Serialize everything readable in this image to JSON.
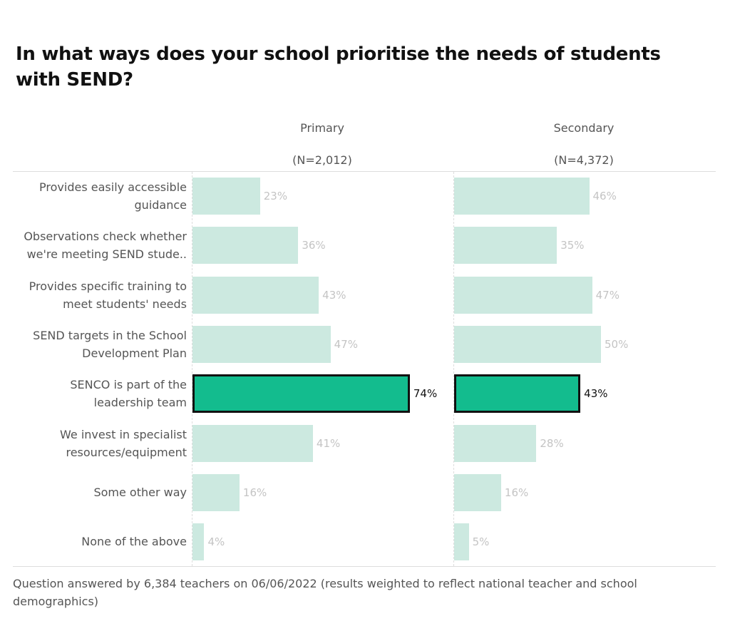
{
  "chart_data": {
    "type": "bar",
    "orientation": "horizontal",
    "title": "In what ways does your school prioritise the needs of students with SEND?",
    "categories": [
      "Provides easily accessible guidance",
      "Observations check whether we're meeting SEND stude..",
      "Provides specific training to meet students' needs",
      "SEND targets in the School Development Plan",
      "SENCO is part of the leadership team",
      "We invest in specialist resources/equipment",
      "Some other way",
      "None of the above"
    ],
    "series": [
      {
        "name": "Primary",
        "n_label": "(N=2,012)",
        "values": [
          23,
          36,
          43,
          47,
          74,
          41,
          16,
          4
        ]
      },
      {
        "name": "Secondary",
        "n_label": "(N=4,372)",
        "values": [
          46,
          35,
          47,
          50,
          43,
          28,
          16,
          5
        ]
      }
    ],
    "highlighted_category": "SENCO is part of the leadership team",
    "value_suffix": "%",
    "xlim": [
      0,
      80
    ],
    "colors": {
      "default": "#cce9e0",
      "highlight": "#13bc8e",
      "highlight_border": "#111111"
    },
    "footer": "Question answered by 6,384 teachers on 06/06/2022 (results weighted to reflect national teacher and school demographics)"
  }
}
